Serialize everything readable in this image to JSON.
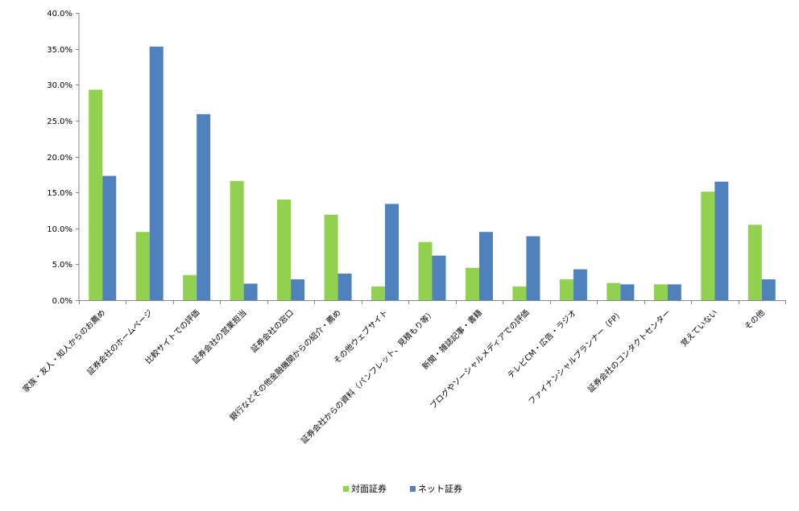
{
  "chart_data": {
    "type": "bar",
    "title": "",
    "xlabel": "",
    "ylabel": "",
    "ylim": [
      0,
      40
    ],
    "y_tick_step": 5,
    "y_tick_format": "percent_1dp",
    "y_tick_labels": [
      "0.0%",
      "5.0%",
      "10.0%",
      "15.0%",
      "20.0%",
      "25.0%",
      "30.0%",
      "35.0%",
      "40.0%"
    ],
    "grid": false,
    "legend_position": "bottom-center",
    "categories": [
      "家族・友人・知人からのお薦め",
      "証券会社のホームページ",
      "比較サイトでの評価",
      "証券会社の営業担当",
      "証券会社の窓口",
      "銀行などその他金融機関からの紹介・薦め",
      "その他ウェブサイト",
      "証券会社からの資料（パンフレット、見積もり等）",
      "新聞・雑誌記事・書籍",
      "ブログやソーシャルメディアでの評価",
      "テレビCM・広告・ラジオ",
      "ファイナンシャルプランナー（FP）",
      "証券会社のコンタクトセンター",
      "覚えていない",
      "その他"
    ],
    "series": [
      {
        "name": "対面証券",
        "color": "#92D050",
        "values": [
          29.3,
          9.5,
          3.5,
          16.6,
          14.0,
          11.9,
          1.9,
          8.1,
          4.5,
          1.9,
          2.9,
          2.4,
          2.2,
          15.1,
          10.5
        ]
      },
      {
        "name": "ネット証券",
        "color": "#4F81BD",
        "values": [
          17.3,
          35.3,
          25.9,
          2.3,
          2.9,
          3.7,
          13.4,
          6.2,
          9.5,
          8.9,
          4.3,
          2.2,
          2.2,
          16.5,
          2.9
        ]
      }
    ]
  }
}
